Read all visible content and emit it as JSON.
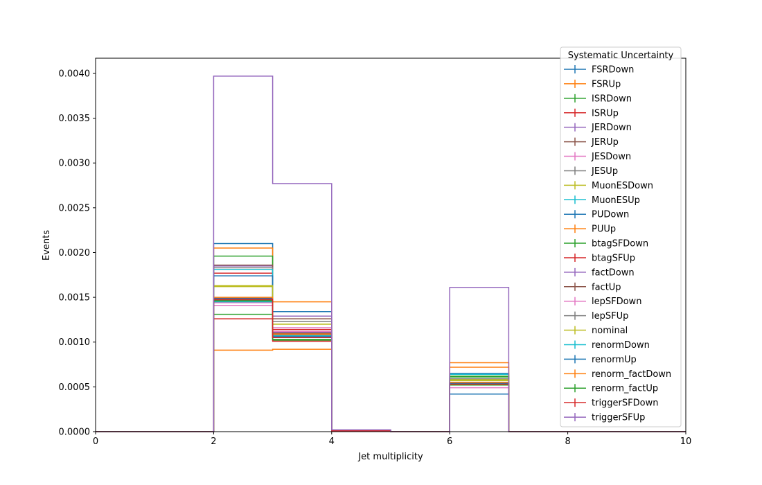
{
  "chart_data": {
    "type": "step",
    "title": "",
    "xlabel": "Jet multiplicity",
    "ylabel": "Events",
    "xlim": [
      0,
      10
    ],
    "ylim": [
      0,
      0.00417
    ],
    "xticks": [
      "0",
      "2",
      "4",
      "6",
      "8",
      "10"
    ],
    "yticks": [
      "0.0000",
      "0.0005",
      "0.0010",
      "0.0015",
      "0.0020",
      "0.0025",
      "0.0030",
      "0.0035",
      "0.0040"
    ],
    "bin_edges": [
      0,
      1,
      2,
      3,
      4,
      5,
      6,
      7,
      8,
      9,
      10
    ],
    "legend": {
      "title": "Systematic Uncertainty",
      "placement": "upper right"
    },
    "grid": false,
    "series": [
      {
        "name": "FSRDown",
        "color": "#1f77b4",
        "values": [
          0,
          0,
          0.0021,
          0.00134,
          1e-05,
          0,
          0.00065,
          0,
          0,
          0
        ]
      },
      {
        "name": "FSRUp",
        "color": "#ff7f0e",
        "values": [
          0,
          0,
          0.00205,
          0.00145,
          1e-05,
          0,
          0.00072,
          0,
          0,
          0
        ]
      },
      {
        "name": "ISRDown",
        "color": "#2ca02c",
        "values": [
          0,
          0,
          0.00196,
          0.00109,
          1e-05,
          0,
          0.00062,
          0,
          0,
          0
        ]
      },
      {
        "name": "ISRUp",
        "color": "#d62728",
        "values": [
          0,
          0,
          0.00177,
          0.00114,
          1e-05,
          0,
          0.00055,
          0,
          0,
          0
        ]
      },
      {
        "name": "JERDown",
        "color": "#9467bd",
        "values": [
          0,
          0,
          0.00185,
          0.00129,
          1e-05,
          0,
          0.00054,
          0,
          0,
          0
        ]
      },
      {
        "name": "JERUp",
        "color": "#8c564b",
        "values": [
          0,
          0,
          0.00186,
          0.00126,
          1e-05,
          0,
          0.00054,
          0,
          0,
          0
        ]
      },
      {
        "name": "JESDown",
        "color": "#e377c2",
        "values": [
          0,
          0,
          0.00141,
          0.00116,
          1e-05,
          0,
          0.00049,
          0,
          0,
          0
        ]
      },
      {
        "name": "JESUp",
        "color": "#7f7f7f",
        "values": [
          0,
          0,
          0.00183,
          0.00123,
          1e-05,
          0,
          0.00059,
          0,
          0,
          0
        ]
      },
      {
        "name": "MuonESDown",
        "color": "#bcbd22",
        "values": [
          0,
          0,
          0.00162,
          0.0012,
          1e-05,
          0,
          0.00057,
          0,
          0,
          0
        ]
      },
      {
        "name": "MuonESUp",
        "color": "#17becf",
        "values": [
          0,
          0,
          0.00181,
          0.00112,
          1e-05,
          0,
          0.00064,
          0,
          0,
          0
        ]
      },
      {
        "name": "PUDown",
        "color": "#1f77b4",
        "values": [
          0,
          0,
          0.00174,
          0.0011,
          1e-05,
          0,
          0.00042,
          0,
          0,
          0
        ]
      },
      {
        "name": "PUUp",
        "color": "#ff7f0e",
        "values": [
          0,
          0,
          0.00091,
          0.00092,
          1e-05,
          0,
          0.00077,
          0,
          0,
          0
        ]
      },
      {
        "name": "btagSFDown",
        "color": "#2ca02c",
        "values": [
          0,
          0,
          0.00131,
          0.00102,
          1e-05,
          0,
          0.00061,
          0,
          0,
          0
        ]
      },
      {
        "name": "btagSFUp",
        "color": "#d62728",
        "values": [
          0,
          0,
          0.00126,
          0.00101,
          1e-05,
          0,
          0.00052,
          0,
          0,
          0
        ]
      },
      {
        "name": "factDown",
        "color": "#9467bd",
        "values": [
          0,
          0,
          0.00148,
          0.00111,
          1e-05,
          0,
          0.00054,
          0,
          0,
          0
        ]
      },
      {
        "name": "factUp",
        "color": "#8c564b",
        "values": [
          0,
          0,
          0.00147,
          0.0011,
          1e-05,
          0,
          0.00053,
          0,
          0,
          0
        ]
      },
      {
        "name": "lepSFDown",
        "color": "#e377c2",
        "values": [
          0,
          0,
          0.00144,
          0.00112,
          1e-05,
          0,
          0.00053,
          0,
          0,
          0
        ]
      },
      {
        "name": "lepSFUp",
        "color": "#7f7f7f",
        "values": [
          0,
          0,
          0.00148,
          0.00108,
          1e-05,
          0,
          0.00054,
          0,
          0,
          0
        ]
      },
      {
        "name": "nominal",
        "color": "#bcbd22",
        "values": [
          0,
          0,
          0.00163,
          0.0012,
          1e-05,
          0,
          0.00058,
          0,
          0,
          0
        ]
      },
      {
        "name": "renormDown",
        "color": "#17becf",
        "values": [
          0,
          0,
          0.00145,
          0.00107,
          1e-05,
          0,
          0.00052,
          0,
          0,
          0
        ]
      },
      {
        "name": "renormUp",
        "color": "#1f77b4",
        "values": [
          0,
          0,
          0.00149,
          0.00106,
          1e-05,
          0,
          0.00054,
          0,
          0,
          0
        ]
      },
      {
        "name": "renorm_factDown",
        "color": "#ff7f0e",
        "values": [
          0,
          0,
          0.0015,
          0.00109,
          1e-05,
          0,
          0.00055,
          0,
          0,
          0
        ]
      },
      {
        "name": "renorm_factUp",
        "color": "#2ca02c",
        "values": [
          0,
          0,
          0.00146,
          0.00103,
          1e-05,
          0,
          0.00052,
          0,
          0,
          0
        ]
      },
      {
        "name": "triggerSFDown",
        "color": "#d62728",
        "values": [
          0,
          0,
          0.00148,
          0.00105,
          1e-05,
          0,
          0.00053,
          0,
          0,
          0
        ]
      },
      {
        "name": "triggerSFUp",
        "color": "#9467bd",
        "values": [
          0,
          0,
          0.00397,
          0.00277,
          2e-05,
          0,
          0.00161,
          0,
          0,
          0
        ]
      }
    ]
  }
}
